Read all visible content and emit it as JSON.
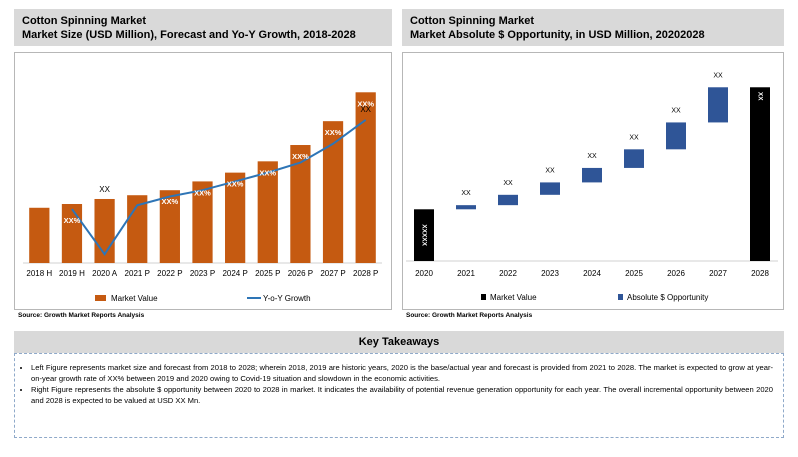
{
  "left_header": {
    "line1": "Cotton Spinning Market",
    "line2": "Market Size (USD Million), Forecast and Yo-Y Growth, 2018-2028"
  },
  "right_header": {
    "line1": "Cotton Spinning Market",
    "line2": "Market Absolute $ Opportunity, in USD Million, 20202028"
  },
  "source_text": "Source: Growth Market Reports Analysis",
  "key_takeaways": {
    "title": "Key Takeaways",
    "items": [
      "Left Figure represents market size and forecast from 2018 to 2028; wherein 2018, 2019 are historic years, 2020 is the base/actual year and forecast is provided from 2021 to 2028. The market is expected to grow at year-on-year growth rate of XX% between 2019 and 2020 owing to Covid-19 situation and slowdown in the economic activities.",
      "Right Figure represents the absolute $ opportunity between 2020 to 2028 in market. It indicates the availability of potential revenue generation opportunity for each year. The overall incremental opportunity between 2020 and 2028 is expected to be valued at USD XX Mn."
    ]
  },
  "colors": {
    "bar": "#c55a11",
    "line": "#2e75b6",
    "waterfall": "#2f5597",
    "black": "#000000",
    "header_bg": "#d9d9d9"
  },
  "chart_data": [
    {
      "type": "bar",
      "categories": [
        "2018 H",
        "2019 H",
        "2020 A",
        "2021 P",
        "2022 P",
        "2023 P",
        "2024 P",
        "2025 P",
        "2026 P",
        "2027 P",
        "2028 P"
      ],
      "series": [
        {
          "name": "Market Value",
          "type": "bar",
          "values": [
            44,
            47,
            51,
            54,
            58,
            65,
            72,
            81,
            94,
            113,
            136
          ]
        },
        {
          "name": "Y-o-Y Growth",
          "type": "line",
          "values": [
            null,
            43,
            7,
            46,
            53,
            58,
            65,
            72,
            80,
            95,
            114
          ]
        }
      ],
      "data_labels": [
        "",
        "XX%",
        "XX",
        "",
        "XX%",
        "XX%",
        "XX%",
        "XX%",
        "XX%",
        "XX%",
        "XX%"
      ],
      "line_end_label": "XX",
      "legend": [
        "Market Value",
        "Y-o-Y Growth"
      ],
      "legend_position": "bottom",
      "ylim": [
        0,
        145
      ]
    },
    {
      "type": "waterfall",
      "categories": [
        "2020",
        "2021",
        "2022",
        "2023",
        "2024",
        "2025",
        "2026",
        "2027",
        "2028"
      ],
      "bases": [
        0,
        25,
        27,
        32,
        38,
        45,
        54,
        67,
        0
      ],
      "values": [
        25,
        2,
        5,
        6,
        7,
        9,
        13,
        17,
        84
      ],
      "data_labels": [
        "XXXXX",
        "XX",
        "XX",
        "XX",
        "XX",
        "XX",
        "XX",
        "XX",
        "XX"
      ],
      "legend": [
        "Market Value",
        "Absolute $ Opportunity"
      ],
      "legend_position": "bottom",
      "ylim": [
        0,
        88
      ]
    }
  ]
}
